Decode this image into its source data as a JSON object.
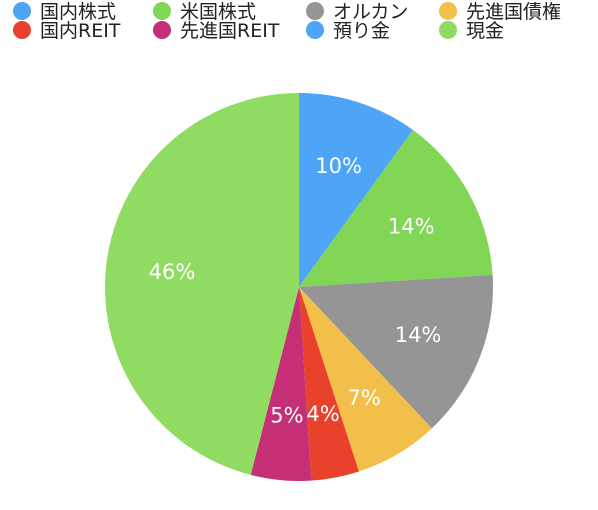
{
  "chart_data": {
    "type": "pie",
    "legend_position": "top",
    "slices": [
      {
        "label": "国内株式",
        "value": 10,
        "display": "10%",
        "color": "#4ea4f6"
      },
      {
        "label": "米国株式",
        "value": 14,
        "display": "14%",
        "color": "#82d655"
      },
      {
        "label": "オルカン",
        "value": 14,
        "display": "14%",
        "color": "#959595"
      },
      {
        "label": "先進国債権",
        "value": 7,
        "display": "7%",
        "color": "#f2c04a"
      },
      {
        "label": "国内REIT",
        "value": 4,
        "display": "4%",
        "color": "#e8412c"
      },
      {
        "label": "先進国REIT",
        "value": 5,
        "display": "5%",
        "color": "#c42f76"
      },
      {
        "label": "預り金",
        "value": 0,
        "display": "",
        "color": "#4ea4f6"
      },
      {
        "label": "現金",
        "value": 46,
        "display": "46%",
        "color": "#90dc63"
      }
    ]
  }
}
